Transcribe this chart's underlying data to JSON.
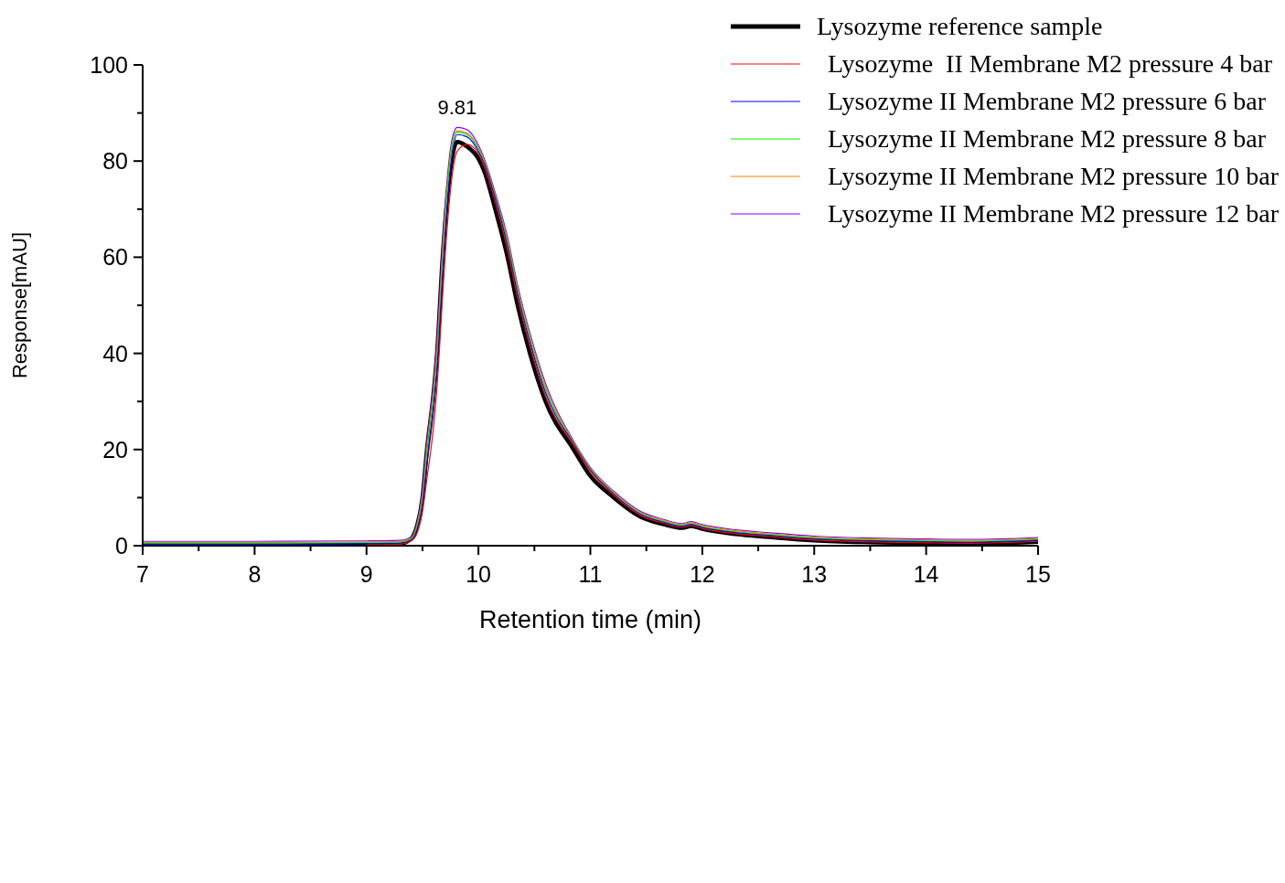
{
  "chart_data": {
    "type": "line",
    "xlabel": "Retention time (min)",
    "ylabel": "Response[mAU]",
    "x": [
      7,
      8,
      9,
      9.3,
      9.4,
      9.45,
      9.5,
      9.54,
      9.6,
      9.63,
      9.68,
      9.72,
      9.76,
      9.81,
      9.9,
      10,
      10.05,
      10.15,
      10.26,
      10.35,
      10.46,
      10.6,
      10.85,
      11,
      11.21,
      11.45,
      11.65,
      11.82,
      11.9,
      12,
      12.3,
      12.6,
      13,
      13.5,
      14,
      14.4,
      15
    ],
    "series": [
      {
        "name": "Lysozyme reference sample",
        "color": "#000000",
        "values": [
          0.1,
          0.1,
          0.2,
          0.4,
          1.5,
          4,
          10,
          20,
          32,
          40,
          60,
          72,
          80,
          84,
          83,
          80.5,
          78,
          70,
          60,
          50,
          40,
          30,
          20,
          14.5,
          10,
          6,
          4.5,
          3.7,
          4.1,
          3.5,
          2.4,
          1.8,
          1.1,
          0.7,
          0.5,
          0.4,
          0.8
        ]
      },
      {
        "name": "Lysozyme  II Membrane M2 pressure 4 bar",
        "color": "#ff0000",
        "values": [
          null,
          null,
          0.2,
          0.3,
          1,
          2.5,
          7,
          14,
          25,
          33,
          52,
          66,
          76,
          82,
          83.5,
          81.5,
          79,
          71.5,
          61.5,
          51.5,
          41.5,
          31,
          21,
          15.5,
          10.5,
          6.3,
          4.7,
          3.8,
          4.2,
          3.6,
          2.5,
          1.9,
          1.2,
          0.8,
          0.6,
          0.5,
          0.9
        ]
      },
      {
        "name": "Lysozyme II Membrane M2 pressure 6 bar",
        "color": "#0000ff",
        "values": [
          0.3,
          0.3,
          0.4,
          0.5,
          1.2,
          3.2,
          8.5,
          17,
          28.5,
          36.5,
          56,
          70,
          80,
          85.5,
          85,
          82,
          79.5,
          72.2,
          62.3,
          52.3,
          42.3,
          31.8,
          21.2,
          15.7,
          10.7,
          6.5,
          4.9,
          4,
          4.4,
          3.8,
          2.7,
          2.1,
          1.4,
          1,
          0.8,
          0.7,
          1.1
        ]
      },
      {
        "name": "Lysozyme II Membrane M2 pressure 8 bar",
        "color": "#00ee00",
        "values": [
          0.5,
          0.5,
          0.6,
          0.7,
          1.4,
          3.8,
          9.5,
          19,
          31,
          39,
          59,
          73,
          82,
          86,
          85.5,
          82.5,
          79.8,
          72.6,
          63,
          53,
          43,
          32.5,
          21.4,
          15.9,
          10.9,
          6.7,
          5.1,
          4.2,
          4.6,
          4,
          2.9,
          2.3,
          1.6,
          1.2,
          1,
          0.9,
          1.3
        ]
      },
      {
        "name": "Lysozyme II Membrane M2 pressure 10 bar",
        "color": "#ff8000",
        "values": [
          0.7,
          0.7,
          0.8,
          0.9,
          1.6,
          4.2,
          10.5,
          20.5,
          32.5,
          41,
          61,
          74.5,
          83,
          86.3,
          85.8,
          82.8,
          80.2,
          73,
          63.6,
          53.6,
          43.6,
          33.1,
          21.6,
          16.1,
          11.1,
          6.9,
          5.3,
          4.4,
          4.8,
          4.2,
          3.1,
          2.5,
          1.8,
          1.4,
          1.2,
          1.1,
          1.5
        ]
      },
      {
        "name": "Lysozyme II Membrane M2 pressure 12 bar",
        "color": "#8000ff",
        "values": [
          0.9,
          0.9,
          1,
          1.1,
          1.8,
          4.6,
          11.5,
          22,
          34,
          43,
          63,
          76,
          84,
          87,
          86.5,
          83.3,
          80.6,
          73.4,
          64.2,
          54.2,
          44.2,
          33.7,
          21.8,
          16.3,
          11.3,
          7.1,
          5.5,
          4.6,
          5,
          4.4,
          3.3,
          2.7,
          2,
          1.6,
          1.4,
          1.3,
          1.7
        ]
      }
    ],
    "annotations": [
      {
        "text": "9.81",
        "x": 9.81,
        "y": 87
      }
    ],
    "xlim": [
      7,
      15
    ],
    "xticks": [
      7,
      {
        "value": 7.5,
        "label": null
      },
      8,
      {
        "value": 8.5,
        "label": null
      },
      9,
      {
        "value": 9.5,
        "label": null
      },
      10,
      {
        "value": 10.5,
        "label": null
      },
      11,
      {
        "value": 11.5,
        "label": null
      },
      12,
      {
        "value": 12.5,
        "label": null
      },
      13,
      {
        "value": 13.5,
        "label": null
      },
      14,
      {
        "value": 14.5,
        "label": null
      },
      15
    ],
    "ylim": [
      0,
      100
    ],
    "yticks": [
      0,
      {
        "value": 10,
        "label": null
      },
      20,
      {
        "value": 30,
        "label": null
      },
      40,
      {
        "value": 50,
        "label": null
      },
      60,
      {
        "value": 70,
        "label": null
      },
      80,
      {
        "value": 90,
        "label": null
      },
      100
    ],
    "grid": false,
    "legend": "top right",
    "marker": "none",
    "line_style": "solid"
  }
}
